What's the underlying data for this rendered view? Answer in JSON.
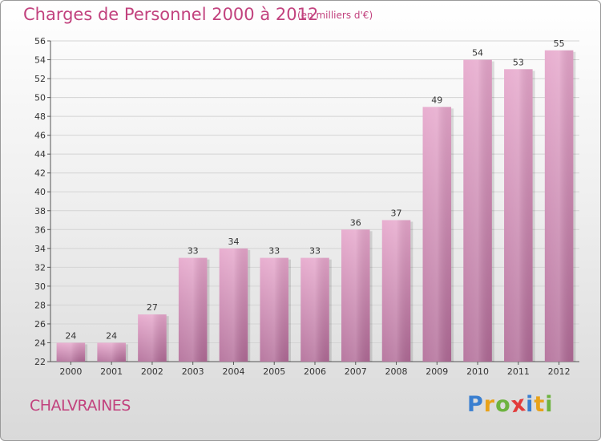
{
  "header": {
    "title": "Charges de Personnel 2000 à 2012",
    "unit_note": "(en milliers d'€)"
  },
  "footer": {
    "commune": "CHALVRAINES",
    "brand": "Proxiti",
    "brand_letters": [
      {
        "ch": "P",
        "color": "#3a7fd0"
      },
      {
        "ch": "r",
        "color": "#e8a21a"
      },
      {
        "ch": "o",
        "color": "#6db33f"
      },
      {
        "ch": "x",
        "color": "#e23b3b"
      },
      {
        "ch": "i",
        "color": "#3a7fd0"
      },
      {
        "ch": "t",
        "color": "#e8a21a"
      },
      {
        "ch": "i",
        "color": "#6db33f"
      }
    ]
  },
  "colors": {
    "accent": "#c2427e",
    "bar_top": "#e6a6cb",
    "bar_bottom": "#b06a96",
    "grid": "#d4d4d4"
  },
  "chart_data": {
    "type": "bar",
    "title": "Charges de Personnel 2000 à 2012",
    "subtitle": "(en milliers d'€)",
    "xlabel": "",
    "ylabel": "",
    "categories": [
      "2000",
      "2001",
      "2002",
      "2003",
      "2004",
      "2005",
      "2006",
      "2007",
      "2008",
      "2009",
      "2010",
      "2011",
      "2012"
    ],
    "values": [
      24,
      24,
      27,
      33,
      34,
      33,
      33,
      36,
      37,
      49,
      54,
      53,
      55
    ],
    "ylim": [
      22,
      56
    ],
    "yticks": [
      22,
      24,
      26,
      28,
      30,
      32,
      34,
      36,
      38,
      40,
      42,
      44,
      46,
      48,
      50,
      52,
      54,
      56
    ],
    "grid": true,
    "legend": "none"
  }
}
